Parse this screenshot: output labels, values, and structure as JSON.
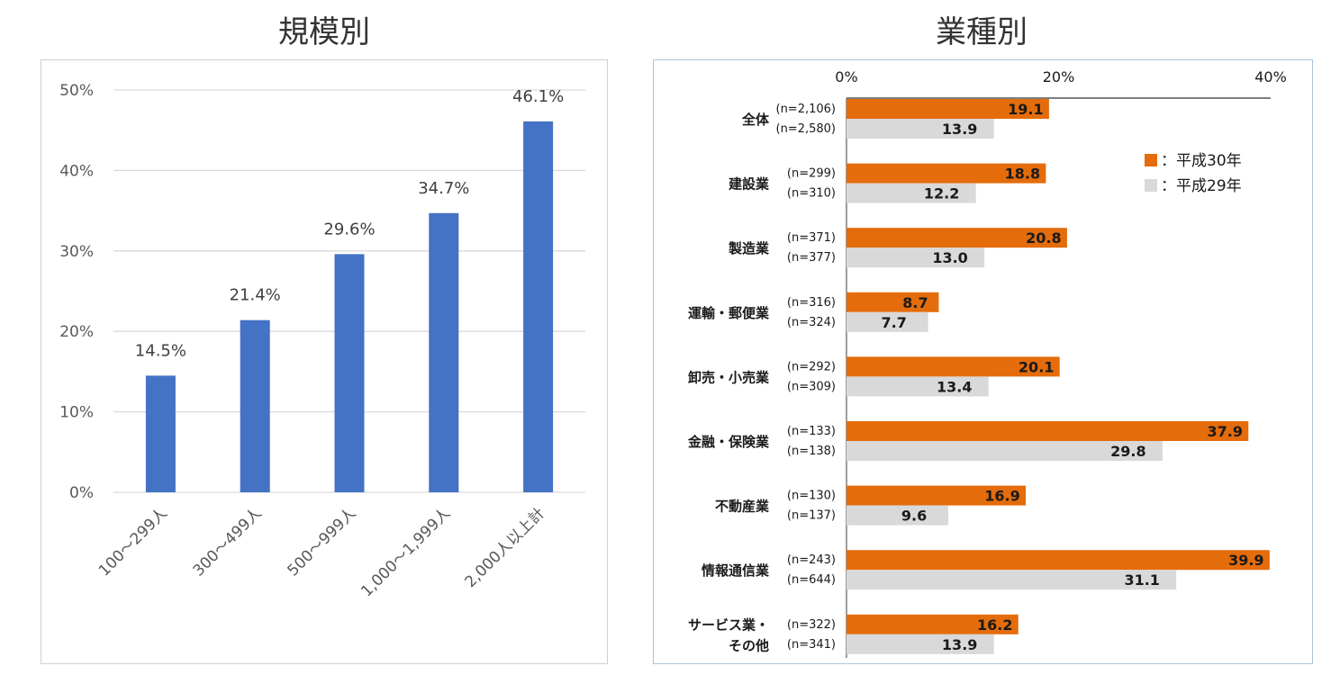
{
  "titles": {
    "left": "規模別",
    "right": "業種別"
  },
  "chart_data": [
    {
      "type": "bar",
      "title": "規模別",
      "categories": [
        "100～299人",
        "300～499人",
        "500～999人",
        "1,000～1,999人",
        "2,000人以上計"
      ],
      "values": [
        14.5,
        21.4,
        29.6,
        34.7,
        46.1
      ],
      "value_labels": [
        "14.5%",
        "21.4%",
        "29.6%",
        "34.7%",
        "46.1%"
      ],
      "ylim": [
        0,
        50
      ],
      "yticks": [
        "0%",
        "10%",
        "20%",
        "30%",
        "40%",
        "50%"
      ],
      "grid": true,
      "color": "#4472c4"
    },
    {
      "type": "bar",
      "orientation": "horizontal",
      "title": "業種別",
      "categories": [
        {
          "label": [
            "全体"
          ],
          "n": [
            "(n=2,106)",
            "(n=2,580)"
          ]
        },
        {
          "label": [
            "建設業"
          ],
          "n": [
            "(n=299)",
            "(n=310)"
          ]
        },
        {
          "label": [
            "製造業"
          ],
          "n": [
            "(n=371)",
            "(n=377)"
          ]
        },
        {
          "label": [
            "運輸・郵便業"
          ],
          "n": [
            "(n=316)",
            "(n=324)"
          ]
        },
        {
          "label": [
            "卸売・小売業"
          ],
          "n": [
            "(n=292)",
            "(n=309)"
          ]
        },
        {
          "label": [
            "金融・保険業"
          ],
          "n": [
            "(n=133)",
            "(n=138)"
          ]
        },
        {
          "label": [
            "不動産業"
          ],
          "n": [
            "(n=130)",
            "(n=137)"
          ]
        },
        {
          "label": [
            "情報通信業"
          ],
          "n": [
            "(n=243)",
            "(n=644)"
          ]
        },
        {
          "label": [
            "サービス業・",
            "その他"
          ],
          "n": [
            "(n=322)",
            "(n=341)"
          ]
        }
      ],
      "series": [
        {
          "name": "：平成30年",
          "color": "#e46c0a",
          "values": [
            19.1,
            18.8,
            20.8,
            8.7,
            20.1,
            37.9,
            16.9,
            39.9,
            16.2
          ],
          "labels": [
            "19.1",
            "18.8",
            "20.8",
            "8.7",
            "20.1",
            "37.9",
            "16.9",
            "39.9",
            "16.2"
          ]
        },
        {
          "name": "：平成29年",
          "color": "#d9d9d9",
          "values": [
            13.9,
            12.2,
            13.0,
            7.7,
            13.4,
            29.8,
            9.6,
            31.1,
            13.9
          ],
          "labels": [
            "13.9",
            "12.2",
            "13.0",
            "7.7",
            "13.4",
            "29.8",
            "9.6",
            "31.1",
            "13.9"
          ]
        }
      ],
      "xlim": [
        0,
        40
      ],
      "xticks": [
        "0%",
        "20%",
        "40%"
      ],
      "legend_position": "top-right"
    }
  ]
}
